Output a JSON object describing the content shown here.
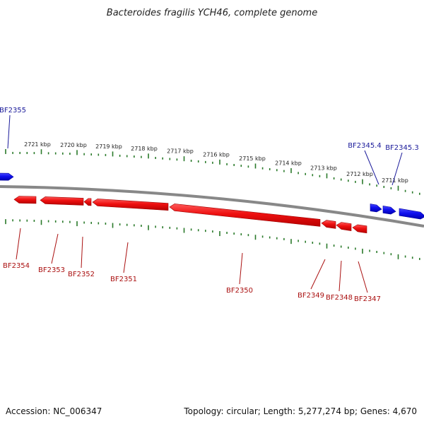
{
  "title": "Bacteroides fragilis YCH46, complete genome",
  "accession_label": "Accession: NC_006347",
  "topology_label": "Topology: circular; Length: 5,277,274 bp; Genes: 4,670",
  "colors": {
    "forward_gene": "#1010ee",
    "reverse_gene": "#ee1010",
    "backbone": "#888888",
    "tick": "#2a7a2a",
    "forward_label": "#1a1a9a",
    "reverse_label": "#aa1010"
  },
  "kbp_labels": [
    "2721 kbp",
    "2720 kbp",
    "2719 kbp",
    "2718 kbp",
    "2717 kbp",
    "2716 kbp",
    "2715 kbp",
    "2714 kbp",
    "2713 kbp",
    "2712 kbp",
    "2711 kbp"
  ],
  "forward_genes": [
    {
      "label": "BF2355"
    },
    {
      "label": "BF2345.4"
    },
    {
      "label": "BF2345.3"
    }
  ],
  "reverse_genes": [
    {
      "label": "BF2354"
    },
    {
      "label": "BF2353"
    },
    {
      "label": "BF2352"
    },
    {
      "label": "BF2351"
    },
    {
      "label": "BF2350"
    },
    {
      "label": "BF2349"
    },
    {
      "label": "BF2348"
    },
    {
      "label": "BF2347"
    }
  ]
}
